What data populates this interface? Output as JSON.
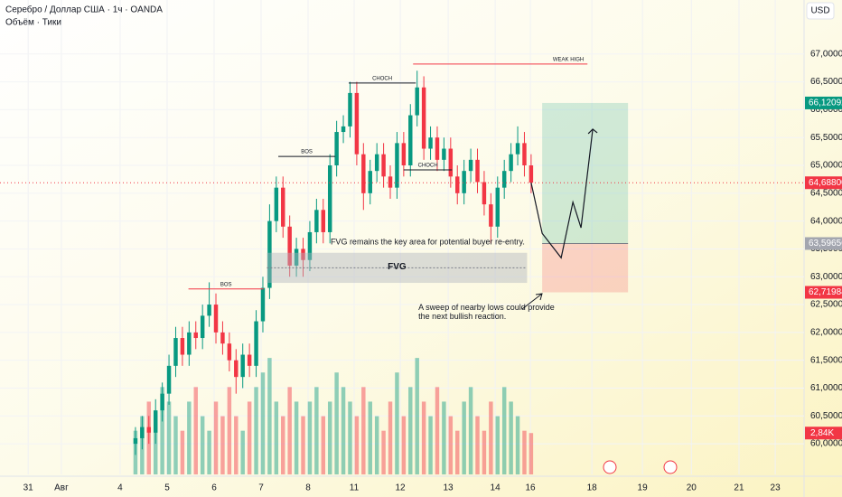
{
  "chart_data": {
    "type": "candlestick",
    "title": "Серебро / Доллар США · 1ч · OANDA",
    "subtitle": "Объём · Тики",
    "currency": "USD",
    "xlim": [
      -20.2,
      99.7
    ],
    "xticks": [
      {
        "value": -16.0,
        "label": "31"
      },
      {
        "value": -11.05,
        "label": "Авг"
      },
      {
        "value": -2.29,
        "label": "4"
      },
      {
        "value": 4.72,
        "label": "5"
      },
      {
        "value": 11.73,
        "label": "6"
      },
      {
        "value": 18.73,
        "label": "7"
      },
      {
        "value": 25.74,
        "label": "8"
      },
      {
        "value": 32.61,
        "label": "11"
      },
      {
        "value": 39.49,
        "label": "12"
      },
      {
        "value": 46.63,
        "label": "13"
      },
      {
        "value": 53.64,
        "label": "14"
      },
      {
        "value": 58.89,
        "label": "16"
      },
      {
        "value": 68.06,
        "label": "18"
      },
      {
        "value": 75.6,
        "label": "19"
      },
      {
        "value": 82.9,
        "label": "20"
      },
      {
        "value": 90.0,
        "label": "21"
      },
      {
        "value": 95.4,
        "label": "23"
      }
    ],
    "ylim": [
      59.45,
      67.97
    ],
    "yticks": [
      {
        "value": 60,
        "label": "60,00000"
      },
      {
        "value": 60.5,
        "label": "60,50000"
      },
      {
        "value": 61,
        "label": "61,00000"
      },
      {
        "value": 61.5,
        "label": "61,50000"
      },
      {
        "value": 62,
        "label": "62,00000"
      },
      {
        "value": 62.5,
        "label": "62,50000"
      },
      {
        "value": 63,
        "label": "63,00000"
      },
      {
        "value": 63.5,
        "label": "63,50000"
      },
      {
        "value": 64,
        "label": "64,00000"
      },
      {
        "value": 64.5,
        "label": "64,50000"
      },
      {
        "value": 65,
        "label": "65,00000"
      },
      {
        "value": 65.5,
        "label": "65,50000"
      },
      {
        "value": 66,
        "label": "66,00000"
      },
      {
        "value": 66.5,
        "label": "66,50000"
      },
      {
        "value": 67,
        "label": "67,00000"
      }
    ],
    "grid": true,
    "up_color": "#089981",
    "down_color": "#f23645",
    "open": [
      60.0,
      60.1,
      60.3,
      60.2,
      60.6,
      60.9,
      61.4,
      61.9,
      61.6,
      62.0,
      61.9,
      62.3,
      62.5,
      62.0,
      61.8,
      61.5,
      61.2,
      61.6,
      61.4,
      62.2,
      62.8,
      64.0,
      64.6,
      63.9,
      63.2,
      63.5,
      63.3,
      63.8,
      64.2,
      63.8,
      65.0,
      65.6,
      65.7,
      66.3,
      65.2,
      64.5,
      64.9,
      65.2,
      64.8,
      64.6,
      65.4,
      65.0,
      65.9,
      66.4,
      65.3,
      65.5,
      65.1,
      65.3,
      64.8,
      64.5,
      64.9,
      65.1,
      64.7,
      64.3,
      63.9,
      64.6,
      64.9,
      65.2,
      65.4,
      65.0
    ],
    "high": [
      60.3,
      60.5,
      60.5,
      60.8,
      61.1,
      61.6,
      62.1,
      62.1,
      62.2,
      62.2,
      62.5,
      62.9,
      62.7,
      62.2,
      62.0,
      61.7,
      61.8,
      61.8,
      62.4,
      63.0,
      64.3,
      64.8,
      64.8,
      64.1,
      63.7,
      63.7,
      64.0,
      64.4,
      64.4,
      65.2,
      65.8,
      65.9,
      66.5,
      66.5,
      65.4,
      65.1,
      65.4,
      65.4,
      65.0,
      65.6,
      65.6,
      66.1,
      66.7,
      66.6,
      65.7,
      65.7,
      65.5,
      65.5,
      65.0,
      65.1,
      65.3,
      65.3,
      64.9,
      64.5,
      64.8,
      65.1,
      65.4,
      65.7,
      65.6,
      65.2
    ],
    "low": [
      59.8,
      59.9,
      60.0,
      60.0,
      60.4,
      60.7,
      61.2,
      61.4,
      61.4,
      61.7,
      61.7,
      62.1,
      61.8,
      61.6,
      61.3,
      60.9,
      61.0,
      61.2,
      61.2,
      62.0,
      62.6,
      63.8,
      63.7,
      63.0,
      63.0,
      63.0,
      63.1,
      63.6,
      63.6,
      63.6,
      64.8,
      65.4,
      65.5,
      65.0,
      64.2,
      64.3,
      64.7,
      64.6,
      64.4,
      64.4,
      64.8,
      64.8,
      65.7,
      65.1,
      65.1,
      64.9,
      64.9,
      64.6,
      64.3,
      64.3,
      64.7,
      64.5,
      64.1,
      63.6,
      63.7,
      64.4,
      64.7,
      65.0,
      64.8,
      64.5
    ],
    "close": [
      60.1,
      60.3,
      60.2,
      60.6,
      60.9,
      61.4,
      61.9,
      61.6,
      62.0,
      61.9,
      62.3,
      62.5,
      62.0,
      61.8,
      61.5,
      61.2,
      61.6,
      61.4,
      62.2,
      62.8,
      64.0,
      64.6,
      63.9,
      63.2,
      63.5,
      63.3,
      63.8,
      64.2,
      63.8,
      65.0,
      65.6,
      65.7,
      66.3,
      65.2,
      64.5,
      64.9,
      65.2,
      64.8,
      64.6,
      65.4,
      65.0,
      65.9,
      66.4,
      65.3,
      65.5,
      65.1,
      65.3,
      64.8,
      64.5,
      64.9,
      65.1,
      64.7,
      64.3,
      63.9,
      64.6,
      64.9,
      65.2,
      65.4,
      65.0,
      64.69
    ],
    "volume": [
      3,
      4,
      5,
      4,
      6,
      5,
      4,
      3,
      5,
      6,
      4,
      3,
      5,
      4,
      6,
      4,
      3,
      5,
      6,
      7,
      8,
      5,
      4,
      6,
      5,
      4,
      5,
      6,
      4,
      5,
      7,
      6,
      5,
      4,
      6,
      5,
      4,
      3,
      5,
      7,
      4,
      6,
      8,
      5,
      4,
      6,
      5,
      4,
      3,
      5,
      6,
      4,
      3,
      5,
      4,
      6,
      5,
      4,
      3,
      2.84
    ],
    "volume_ylim": [
      0,
      9
    ],
    "volume_label": {
      "value": 2.84,
      "label": "2,84K"
    },
    "price_labels": [
      {
        "value": 66.12092,
        "label": "66,12092",
        "color": "#089981"
      },
      {
        "value": 64.688,
        "label": "64,68800",
        "color": "#f23645"
      },
      {
        "value": 63.59656,
        "label": "63,59656",
        "color": "#a3a6af"
      },
      {
        "value": 62.71984,
        "label": "62,71984",
        "color": "#f23645"
      }
    ],
    "position": {
      "x": [
        60.65,
        73.45
      ]
    },
    "projection": {
      "x": [
        59,
        60.65,
        63.48,
        65.23,
        66.44,
        68.19
      ],
      "values": [
        64.69,
        63.78,
        63.34,
        64.34,
        63.88,
        65.65
      ]
    },
    "levels": [
      {
        "label": "BOS",
        "price": 62.78,
        "x": [
          7.9,
          19.1
        ],
        "color": "#f23645"
      },
      {
        "label": "BOS",
        "price": 65.16,
        "x": [
          21.3,
          29.8
        ],
        "color": "#131722"
      },
      {
        "label": "CHOCH",
        "price": 66.48,
        "x": [
          31.8,
          41.8
        ],
        "color": "#131722"
      },
      {
        "label": "CHOCH",
        "price": 64.92,
        "x": [
          40.0,
          47.2
        ],
        "color": "#131722"
      },
      {
        "label": "WEAK HIGH",
        "price": 66.82,
        "x": [
          41.4,
          67.4
        ],
        "color": "#f23645"
      }
    ],
    "fvg": {
      "label": "FVG",
      "x": [
        19.6,
        58.4
      ],
      "top": 63.43,
      "bottom": 62.89
    },
    "notes": [
      {
        "lines": [
          "FVG remains the key area for potential buyer re-entry."
        ],
        "x": 29.1,
        "price": 63.62
      },
      {
        "lines": [
          "A sweep of nearby lows could provide",
          "the next bullish reaction."
        ],
        "x": 42.2,
        "price": 62.44
      }
    ]
  }
}
